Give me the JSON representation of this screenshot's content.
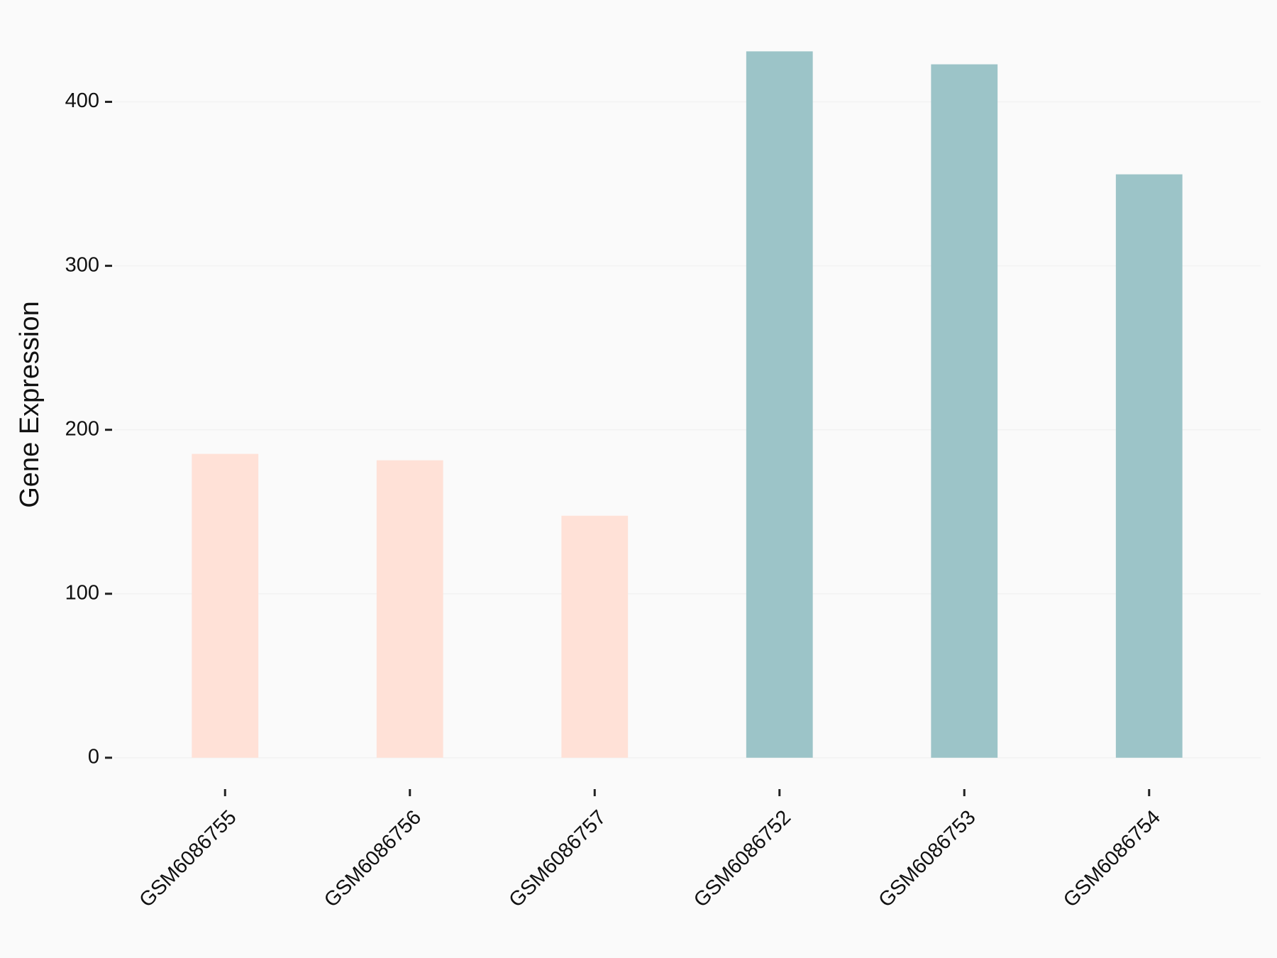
{
  "chart_data": {
    "type": "bar",
    "y_label": "Gene Expression",
    "categories": [
      "GSM6086755",
      "GSM6086756",
      "GSM6086757",
      "GSM6086752",
      "GSM6086753",
      "GSM6086754"
    ],
    "values": [
      185.3,
      181.4,
      147.6,
      430.8,
      422.9,
      355.8
    ],
    "colors": [
      "#ffe1d7",
      "#ffe1d7",
      "#ffe1d7",
      "#9cc4c8",
      "#9cc4c8",
      "#9cc4c8"
    ],
    "ylim": [
      -20,
      450
    ],
    "yticks": [
      0,
      100,
      200,
      300,
      400
    ],
    "grid": true
  }
}
